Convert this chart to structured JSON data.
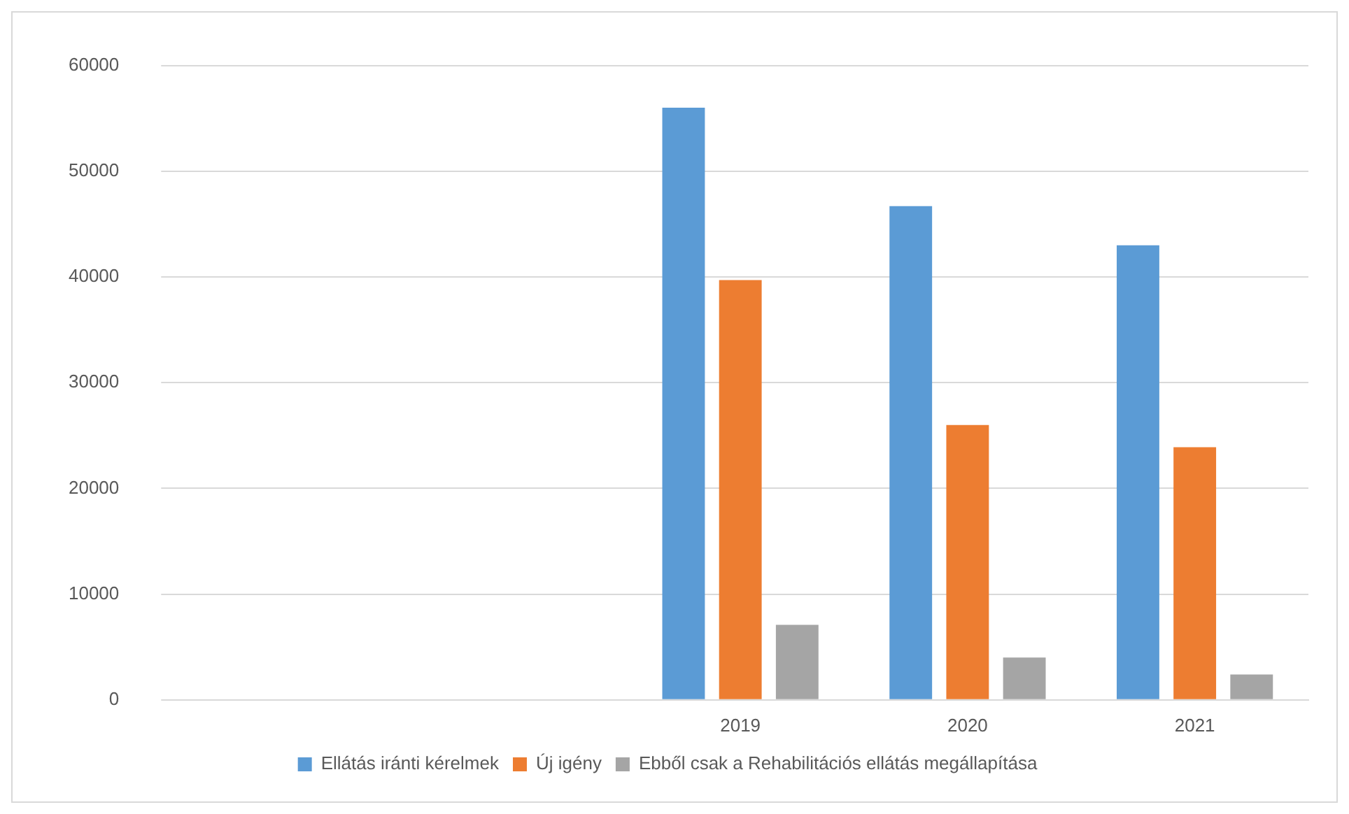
{
  "chart_data": {
    "type": "bar",
    "categories": [
      null,
      null,
      "2019",
      "2020",
      "2021"
    ],
    "series": [
      {
        "name": "Ellátás iránti kérelmek",
        "color": "#5b9bd5",
        "values": [
          null,
          null,
          56000,
          46700,
          43000
        ]
      },
      {
        "name": "Új igény",
        "color": "#ed7d31",
        "values": [
          null,
          null,
          39700,
          26000,
          23900
        ]
      },
      {
        "name": "Ebből csak a Rehabilitációs ellátás megállapítása",
        "color": "#a5a5a5",
        "values": [
          null,
          null,
          7100,
          4000,
          2400
        ]
      }
    ],
    "ylim": [
      0,
      60000
    ],
    "yticks": [
      0,
      10000,
      20000,
      30000,
      40000,
      50000,
      60000
    ],
    "grid": "y",
    "legend": "bottom"
  }
}
